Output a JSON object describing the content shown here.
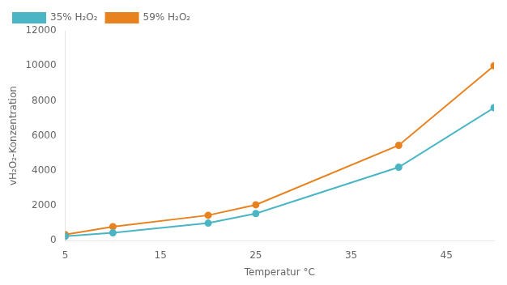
{
  "chart_data": {
    "type": "line",
    "x": [
      5,
      10,
      20,
      25,
      40,
      50
    ],
    "series": [
      {
        "name": "35% H₂O₂",
        "color": "#4ab5c4",
        "marker": "circle",
        "values": [
          250,
          450,
          1000,
          1550,
          4200,
          7600
        ]
      },
      {
        "name": "59% H₂O₂",
        "color": "#e8821e",
        "marker": "circle",
        "values": [
          350,
          800,
          1450,
          2050,
          5450,
          10000
        ]
      }
    ],
    "xlabel": "Temperatur °C",
    "ylabel": "vH₂O₂-Konzentration",
    "xlim": [
      5,
      50
    ],
    "ylim": [
      0,
      12000
    ],
    "xticks": [
      5,
      15,
      25,
      35,
      45
    ],
    "yticks": [
      0,
      2000,
      4000,
      6000,
      8000,
      10000,
      12000
    ],
    "grid": false,
    "legend": "upper left"
  }
}
